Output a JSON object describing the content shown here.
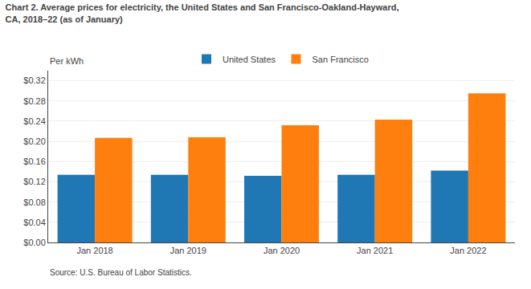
{
  "chart_data": {
    "type": "bar",
    "title": "Chart 2. Average prices for electricity, the United States and San Francisco-Oakland-Hayward,\nCA, 2018–22 (as of January)",
    "ylabel": "Per kWh",
    "source": "Source: U.S. Bureau of Labor Statistics.",
    "categories": [
      "Jan 2018",
      "Jan 2019",
      "Jan 2020",
      "Jan 2021",
      "Jan 2022"
    ],
    "series": [
      {
        "name": "United States",
        "values": [
          0.134,
          0.134,
          0.132,
          0.134,
          0.142
        ]
      },
      {
        "name": "San Francisco",
        "values": [
          0.207,
          0.208,
          0.232,
          0.243,
          0.295
        ]
      }
    ],
    "ylim": [
      0,
      0.34
    ],
    "yticks": [
      {
        "value": 0.0,
        "label": "$0.00"
      },
      {
        "value": 0.04,
        "label": "$0.04"
      },
      {
        "value": 0.08,
        "label": "$0.08"
      },
      {
        "value": 0.12,
        "label": "$0.12"
      },
      {
        "value": 0.16,
        "label": "$0.16"
      },
      {
        "value": 0.2,
        "label": "$0.20"
      },
      {
        "value": 0.24,
        "label": "$0.24"
      },
      {
        "value": 0.28,
        "label": "$0.28"
      },
      {
        "value": 0.32,
        "label": "$0.32"
      }
    ],
    "grid": true,
    "legend": "top"
  }
}
